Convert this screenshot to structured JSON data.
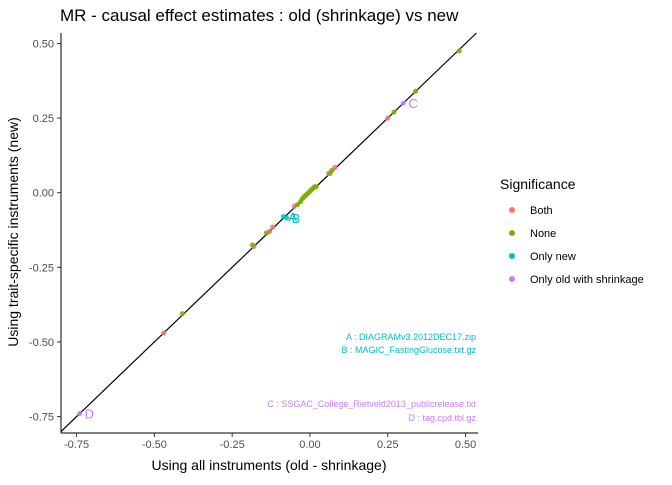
{
  "chart_data": {
    "type": "scatter",
    "title": "MR - causal effect estimates : old (shrinkage) vs new",
    "xlabel": "Using all instruments (old - shrinkage)",
    "ylabel": "Using trait-specific instruments (new)",
    "xlim": [
      -0.8,
      0.54
    ],
    "ylim": [
      -0.805,
      0.535
    ],
    "x_ticks": [
      -0.75,
      -0.5,
      -0.25,
      0.0,
      0.25,
      0.5
    ],
    "x_tick_labels": [
      "-0.75",
      "-0.50",
      "-0.25",
      "0.00",
      "0.25",
      "0.50"
    ],
    "y_ticks": [
      -0.75,
      -0.5,
      -0.25,
      0.0,
      0.25,
      0.5
    ],
    "y_tick_labels": [
      "-0.75",
      "-0.50",
      "-0.25",
      "0.00",
      "0.25",
      "0.50"
    ],
    "grid": false,
    "reference_line": "y = x",
    "legend": {
      "title": "Significance",
      "position": "right",
      "entries": [
        {
          "label": "Both",
          "color": "#F8766D"
        },
        {
          "label": "None",
          "color": "#7CAE00"
        },
        {
          "label": "Only new",
          "color": "#00BFC4"
        },
        {
          "label": "Only old with shrinkage",
          "color": "#C77CFF"
        }
      ]
    },
    "series": [
      {
        "name": "Both",
        "color": "#F8766D",
        "points": [
          {
            "x": -0.47,
            "y": -0.47
          },
          {
            "x": -0.18,
            "y": -0.18
          },
          {
            "x": -0.13,
            "y": -0.13
          },
          {
            "x": -0.12,
            "y": -0.115
          },
          {
            "x": -0.05,
            "y": -0.045
          },
          {
            "x": 0.06,
            "y": 0.065
          },
          {
            "x": 0.08,
            "y": 0.085
          },
          {
            "x": 0.25,
            "y": 0.25
          }
        ]
      },
      {
        "name": "None",
        "color": "#7CAE00",
        "points": [
          {
            "x": -0.41,
            "y": -0.405
          },
          {
            "x": -0.185,
            "y": -0.175
          },
          {
            "x": -0.14,
            "y": -0.135
          },
          {
            "x": -0.04,
            "y": -0.04
          },
          {
            "x": -0.03,
            "y": -0.03
          },
          {
            "x": -0.025,
            "y": -0.02
          },
          {
            "x": -0.02,
            "y": -0.015
          },
          {
            "x": -0.015,
            "y": -0.01
          },
          {
            "x": -0.01,
            "y": -0.005
          },
          {
            "x": -0.005,
            "y": 0.0
          },
          {
            "x": 0.0,
            "y": 0.005
          },
          {
            "x": 0.005,
            "y": 0.01
          },
          {
            "x": 0.01,
            "y": 0.015
          },
          {
            "x": 0.015,
            "y": 0.02
          },
          {
            "x": 0.02,
            "y": 0.02
          },
          {
            "x": 0.065,
            "y": 0.065
          },
          {
            "x": 0.07,
            "y": 0.075
          },
          {
            "x": 0.27,
            "y": 0.27
          },
          {
            "x": 0.34,
            "y": 0.34
          },
          {
            "x": 0.48,
            "y": 0.475
          }
        ]
      },
      {
        "name": "Only new",
        "color": "#00BFC4",
        "points": [
          {
            "x": -0.085,
            "y": -0.08,
            "label": "A"
          },
          {
            "x": -0.075,
            "y": -0.085,
            "label": "B"
          }
        ]
      },
      {
        "name": "Only old with shrinkage",
        "color": "#C77CFF",
        "points": [
          {
            "x": 0.3,
            "y": 0.3,
            "label": "C"
          },
          {
            "x": -0.74,
            "y": -0.74,
            "label": "D"
          }
        ]
      }
    ],
    "annotations": [
      {
        "text": "A :  DIAGRAMv3.2012DEC17.zip",
        "color": "#00BFC4"
      },
      {
        "text": "B :  MAGIC_FastingGlucose.txt.gz",
        "color": "#00BFC4"
      },
      {
        "text": "C :  SSGAC_College_Rietveld2013_publicrelease.txt",
        "color": "#C77CFF"
      },
      {
        "text": "D :  tag.cpd.tbl.gz",
        "color": "#C77CFF"
      }
    ]
  }
}
